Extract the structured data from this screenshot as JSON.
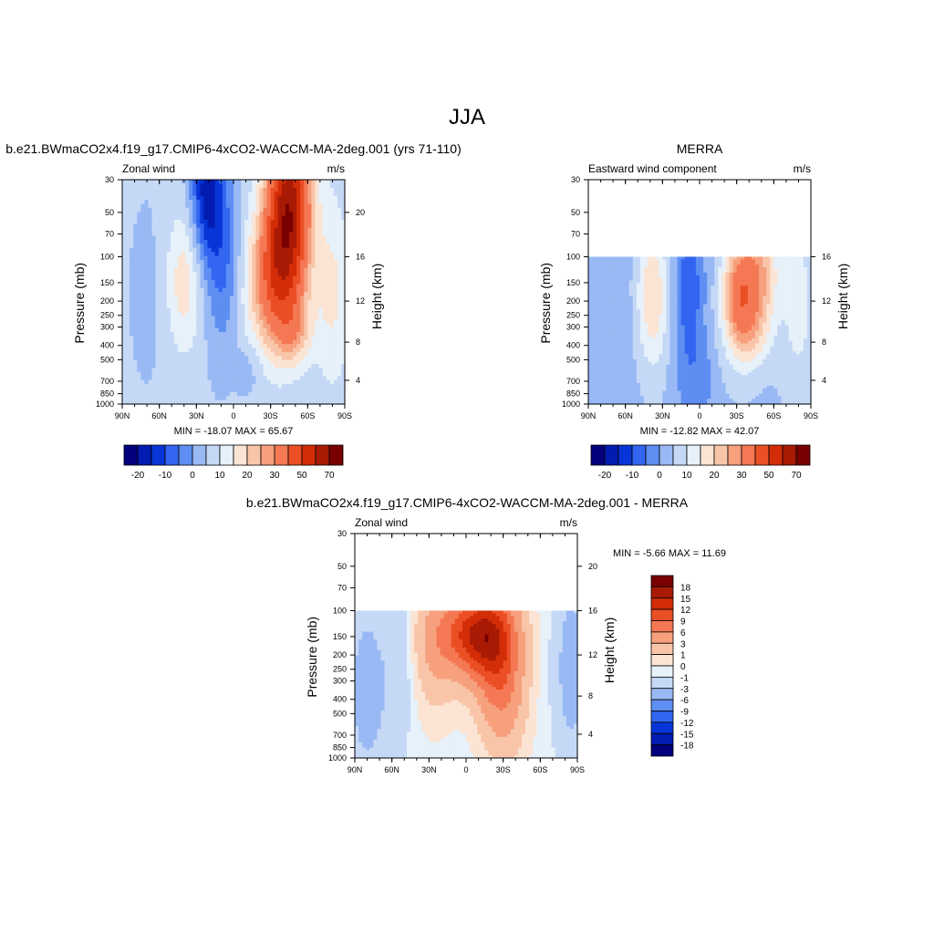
{
  "page_title": "JJA",
  "chart_data": [
    {
      "type": "heatmap",
      "id": "model",
      "title": "b.e21.BWmaCO2x4.f19_g17.CMIP6-4xCO2-WACCM-MA-2deg.001 (yrs 71-110)",
      "left_label": "Zonal wind",
      "units": "m/s",
      "ylabel": "Pressure (mb)",
      "right_ylabel": "Height (km)",
      "x_ticks": [
        "90N",
        "60N",
        "30N",
        "0",
        "30S",
        "60S",
        "90S"
      ],
      "y_ticks": [
        "30",
        "50",
        "70",
        "100",
        "150",
        "200",
        "250",
        "300",
        "400",
        "500",
        "700",
        "850",
        "1000"
      ],
      "height_ticks": [
        "20",
        "16",
        "12",
        "8",
        "4"
      ],
      "stats": "MIN = -18.07  MAX =  65.67",
      "plev_range": [
        30,
        1000
      ],
      "colorbar": {
        "orientation": "horizontal",
        "labels": [
          "-20",
          "-10",
          "0",
          "10",
          "20",
          "30",
          "50",
          "70"
        ],
        "colors": [
          "#03007d",
          "#021bb0",
          "#0735d7",
          "#3265f0",
          "#5e8ef2",
          "#99b9f5",
          "#c5d9f6",
          "#e6f1fa",
          "#fbe4d3",
          "#f9c5a9",
          "#f6a07d",
          "#f57854",
          "#eb4f25",
          "#d32d08",
          "#a91a05",
          "#790000"
        ]
      },
      "contour_levels": [
        -20,
        -15,
        -10,
        -5,
        0,
        5,
        10,
        15,
        20,
        25,
        30,
        40,
        50,
        60,
        70
      ]
    },
    {
      "type": "heatmap",
      "id": "merra",
      "title": "MERRA",
      "left_label": "Eastward wind component",
      "units": "m/s",
      "ylabel": "Pressure (mb)",
      "right_ylabel": "Height (km)",
      "x_ticks": [
        "90N",
        "60N",
        "30N",
        "0",
        "30S",
        "60S",
        "90S"
      ],
      "y_ticks": [
        "30",
        "50",
        "70",
        "100",
        "150",
        "200",
        "250",
        "300",
        "400",
        "500",
        "700",
        "850",
        "1000"
      ],
      "height_ticks": [
        "16",
        "12",
        "8",
        "4"
      ],
      "stats": "MIN = -12.82  MAX =  42.07",
      "plev_range": [
        100,
        1000
      ],
      "colorbar": {
        "orientation": "horizontal",
        "labels": [
          "-20",
          "-10",
          "0",
          "10",
          "20",
          "30",
          "50",
          "70"
        ],
        "colors": [
          "#03007d",
          "#021bb0",
          "#0735d7",
          "#3265f0",
          "#5e8ef2",
          "#99b9f5",
          "#c5d9f6",
          "#e6f1fa",
          "#fbe4d3",
          "#f9c5a9",
          "#f6a07d",
          "#f57854",
          "#eb4f25",
          "#d32d08",
          "#a91a05",
          "#790000"
        ]
      },
      "contour_levels": [
        -20,
        -15,
        -10,
        -5,
        0,
        5,
        10,
        15,
        20,
        25,
        30,
        40,
        50,
        60,
        70
      ]
    },
    {
      "type": "heatmap",
      "id": "diff",
      "title": "b.e21.BWmaCO2x4.f19_g17.CMIP6-4xCO2-WACCM-MA-2deg.001 - MERRA",
      "left_label": "Zonal wind",
      "units": "m/s",
      "ylabel": "Pressure (mb)",
      "right_ylabel": "Height (km)",
      "x_ticks": [
        "90N",
        "60N",
        "30N",
        "0",
        "30S",
        "60S",
        "90S"
      ],
      "y_ticks": [
        "30",
        "50",
        "70",
        "100",
        "150",
        "200",
        "250",
        "300",
        "400",
        "500",
        "700",
        "850",
        "1000"
      ],
      "height_ticks": [
        "20",
        "16",
        "12",
        "8",
        "4"
      ],
      "stats": "MIN =  -5.66  MAX =  11.69",
      "plev_range": [
        100,
        1000
      ],
      "colorbar": {
        "orientation": "vertical",
        "labels": [
          "18",
          "15",
          "12",
          "9",
          "6",
          "3",
          "1",
          "0",
          "-1",
          "-3",
          "-6",
          "-9",
          "-12",
          "-15",
          "-18"
        ],
        "colors": [
          "#790000",
          "#a91a05",
          "#d32d08",
          "#eb4f25",
          "#f57854",
          "#f6a07d",
          "#f9c5a9",
          "#fbe4d3",
          "#e6f1fa",
          "#c5d9f6",
          "#99b9f5",
          "#5e8ef2",
          "#3265f0",
          "#0735d7",
          "#021bb0",
          "#03007d"
        ]
      },
      "contour_levels": [
        -18,
        -15,
        -12,
        -9,
        -6,
        -3,
        -1,
        0,
        1,
        3,
        6,
        9,
        12,
        15,
        18
      ]
    }
  ]
}
